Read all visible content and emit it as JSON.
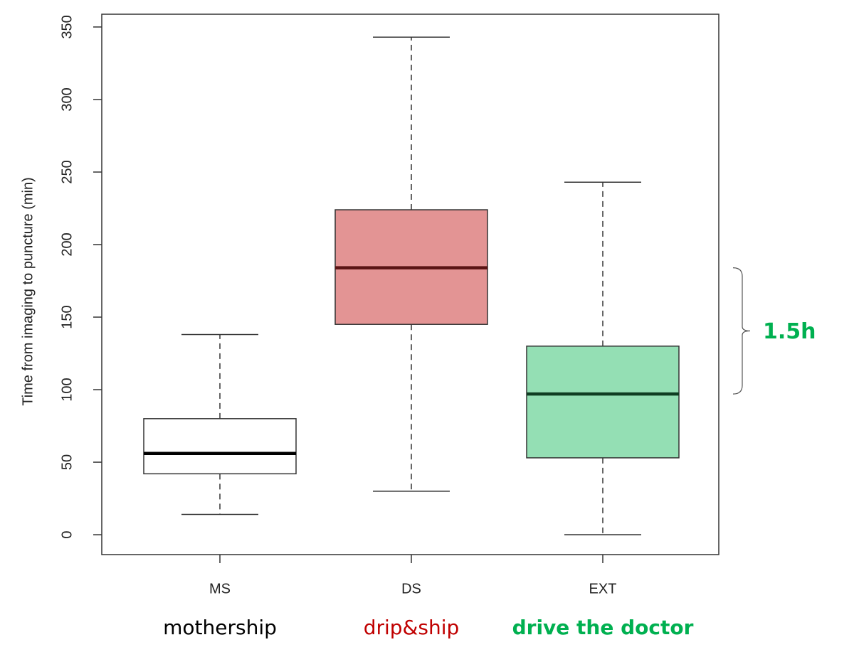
{
  "chart_data": {
    "type": "box",
    "ylabel": "Time from imaging to puncture (min)",
    "categories": [
      "MS",
      "DS",
      "EXT"
    ],
    "sublabels": [
      {
        "text": "mothership",
        "color": "#000000"
      },
      {
        "text": "drip&ship",
        "color": "#c00000"
      },
      {
        "text": "drive the doctor",
        "color": "#00b050"
      }
    ],
    "boxes": [
      {
        "whislo": 14,
        "q1": 42,
        "med": 56,
        "q3": 80,
        "whishi": 138,
        "fill": "#ffffff",
        "median_color": "#000000"
      },
      {
        "whislo": 30,
        "q1": 145,
        "med": 184,
        "q3": 224,
        "whishi": 343,
        "fill": "#e39494",
        "median_color": "#5a1414"
      },
      {
        "whislo": 0,
        "q1": 53,
        "med": 97,
        "q3": 130,
        "whishi": 243,
        "fill": "#94dfb4",
        "median_color": "#0f3d22"
      }
    ],
    "ylim": [
      -13.7,
      358.8
    ],
    "yticks": [
      0,
      50,
      100,
      150,
      200,
      250,
      300,
      350
    ],
    "annotation": {
      "text": "1.5h",
      "color": "#00b050"
    }
  }
}
